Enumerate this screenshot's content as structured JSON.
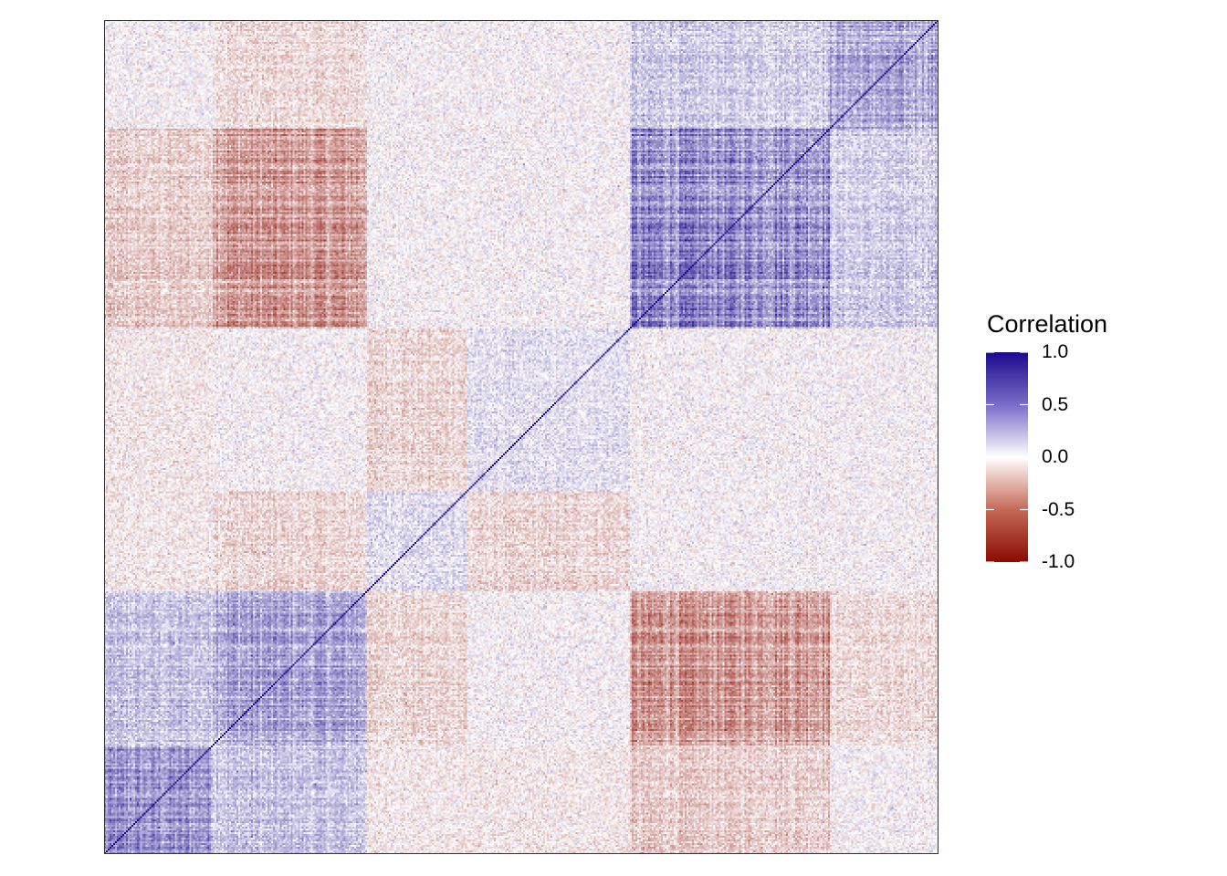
{
  "chart_data": {
    "type": "heatmap",
    "title": "",
    "xlabel": "",
    "ylabel": "",
    "matrix_description": "symmetric correlation matrix with unit diagonal running from bottom-left to top-right",
    "matrix_size": 460,
    "value_range": [
      -1.0,
      1.0
    ],
    "legend": {
      "title": "Correlation",
      "placement": "right",
      "ticks": [
        {
          "value": 1.0,
          "label": "1.0"
        },
        {
          "value": 0.5,
          "label": "0.5"
        },
        {
          "value": 0.0,
          "label": "0.0"
        },
        {
          "value": -0.5,
          "label": "-0.5"
        },
        {
          "value": -1.0,
          "label": "-1.0"
        }
      ]
    },
    "color_scale": {
      "high": "#1a0a8c",
      "mid": "#ffffff",
      "low": "#8b0a00"
    },
    "blocks": [
      {
        "rows": [
          0,
          60
        ],
        "cols": [
          0,
          60
        ],
        "value": 0.35
      },
      {
        "rows": [
          0,
          60
        ],
        "cols": [
          60,
          145
        ],
        "value": 0.18
      },
      {
        "rows": [
          60,
          145
        ],
        "cols": [
          60,
          145
        ],
        "value": 0.3
      },
      {
        "rows": [
          145,
          200
        ],
        "cols": [
          145,
          200
        ],
        "value": 0.1
      },
      {
        "rows": [
          145,
          200
        ],
        "cols": [
          200,
          290
        ],
        "value": -0.12
      },
      {
        "rows": [
          200,
          290
        ],
        "cols": [
          200,
          290
        ],
        "value": 0.08
      },
      {
        "rows": [
          290,
          400
        ],
        "cols": [
          290,
          400
        ],
        "value": 0.4
      },
      {
        "rows": [
          290,
          400
        ],
        "cols": [
          60,
          145
        ],
        "value": -0.35
      },
      {
        "rows": [
          290,
          400
        ],
        "cols": [
          0,
          60
        ],
        "value": -0.15
      },
      {
        "rows": [
          400,
          460
        ],
        "cols": [
          400,
          460
        ],
        "value": 0.28
      },
      {
        "rows": [
          400,
          460
        ],
        "cols": [
          290,
          400
        ],
        "value": 0.15
      },
      {
        "rows": [
          400,
          460
        ],
        "cols": [
          60,
          145
        ],
        "value": -0.1
      },
      {
        "rows": [
          0,
          60
        ],
        "cols": [
          145,
          290
        ],
        "value": -0.05
      },
      {
        "rows": [
          60,
          145
        ],
        "cols": [
          145,
          200
        ],
        "value": -0.12
      }
    ]
  }
}
